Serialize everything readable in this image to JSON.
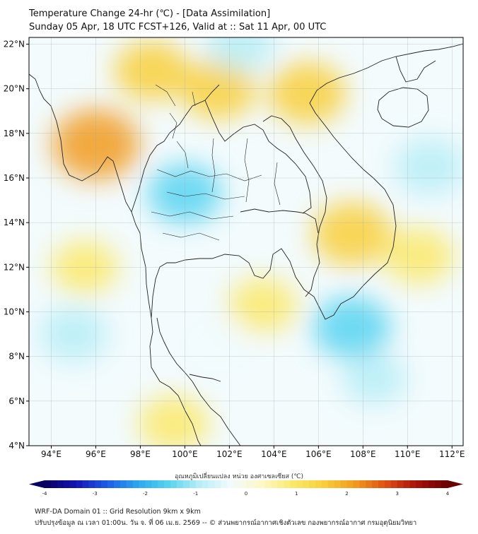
{
  "header": {
    "title_line1": "Temperature Change 24-hr (℃) - [Data Assimilation]",
    "title_line2": "Sunday 05 Apr, 18 UTC FCST+126, Valid at :: Sat 11 Apr, 00 UTC"
  },
  "map": {
    "lat_labels": [
      "22°N",
      "20°N",
      "18°N",
      "16°N",
      "14°N",
      "12°N",
      "10°N",
      "8°N",
      "6°N",
      "4°N"
    ],
    "lon_labels": [
      "94°E",
      "96°E",
      "98°E",
      "100°E",
      "102°E",
      "104°E",
      "106°E",
      "108°E",
      "110°E",
      "112°E"
    ],
    "lat_values": [
      22,
      20,
      18,
      16,
      14,
      12,
      10,
      8,
      6,
      4
    ],
    "lon_values": [
      94,
      96,
      98,
      100,
      102,
      104,
      106,
      108,
      110,
      112
    ],
    "extent": {
      "lon_min": 93.0,
      "lon_max": 112.5,
      "lat_min": 4.0,
      "lat_max": 22.3
    }
  },
  "colorbar": {
    "title": "อุณหภูมิเปลี่ยนแปลง หน่วย องศาเซลเซียส (℃)",
    "tick_labels": [
      "-4",
      "-3",
      "-2",
      "-1",
      "0",
      "1",
      "2",
      "3",
      "4"
    ],
    "tick_values": [
      -4,
      -3,
      -2,
      -1,
      0,
      1,
      2,
      3,
      4
    ],
    "range": [
      -4,
      4
    ],
    "colors": [
      "#08005e",
      "#1414b4",
      "#1f5be8",
      "#2aa7ee",
      "#58d4f0",
      "#b7edf7",
      "#f1fbfd",
      "#fdf8c6",
      "#fbe96a",
      "#f8cf3a",
      "#f19b1e",
      "#e04f13",
      "#a8100a",
      "#6a0000"
    ]
  },
  "footer": {
    "line1": "WRF-DA Domain 01 :: Grid Resolution 9km x 9km",
    "line2": "ปรับปรุงข้อมูล ณ เวลา 01:00น. วัน จ. ที่ 06 เม.ย. 2569 -- © ส่วนพยากรณ์อากาศเชิงตัวเลข กองพยากรณ์อากาศ กรมอุตุนิยมวิทยา"
  },
  "field_anomalies": [
    {
      "name": "warm-myanmar-west",
      "lon": 96.0,
      "lat": 17.5,
      "value": 2.0
    },
    {
      "name": "warm-myanmar-north",
      "lon": 98.5,
      "lat": 20.8,
      "value": 1.2
    },
    {
      "name": "warm-laos-north",
      "lon": 101.5,
      "lat": 20.0,
      "value": 1.3
    },
    {
      "name": "warm-vietnam-north",
      "lon": 105.5,
      "lat": 19.8,
      "value": 1.4
    },
    {
      "name": "warm-cambodia-east",
      "lon": 107.5,
      "lat": 13.5,
      "value": 1.5
    },
    {
      "name": "warm-gulf-thailand",
      "lon": 103.5,
      "lat": 10.3,
      "value": 0.9
    },
    {
      "name": "warm-andaman",
      "lon": 95.5,
      "lat": 12.0,
      "value": 0.8
    },
    {
      "name": "warm-sea-south",
      "lon": 99.5,
      "lat": 5.0,
      "value": 1.0
    },
    {
      "name": "warm-scs",
      "lon": 110.5,
      "lat": 12.5,
      "value": 1.0
    },
    {
      "name": "cool-thailand-central",
      "lon": 100.0,
      "lat": 15.3,
      "value": -1.2
    },
    {
      "name": "cool-vietnam-south-sea",
      "lon": 107.5,
      "lat": 9.3,
      "value": -1.4
    },
    {
      "name": "cool-scs-east",
      "lon": 111.0,
      "lat": 16.5,
      "value": -1.0
    },
    {
      "name": "cool-andaman-south",
      "lon": 95.0,
      "lat": 9.0,
      "value": -0.9
    },
    {
      "name": "cool-north-top",
      "lon": 102.5,
      "lat": 22.0,
      "value": -0.8
    },
    {
      "name": "cool-sea-mid",
      "lon": 108.5,
      "lat": 7.0,
      "value": -0.6
    },
    {
      "name": "cool-malay",
      "lon": 101.5,
      "lat": 8.5,
      "value": -0.5
    }
  ]
}
